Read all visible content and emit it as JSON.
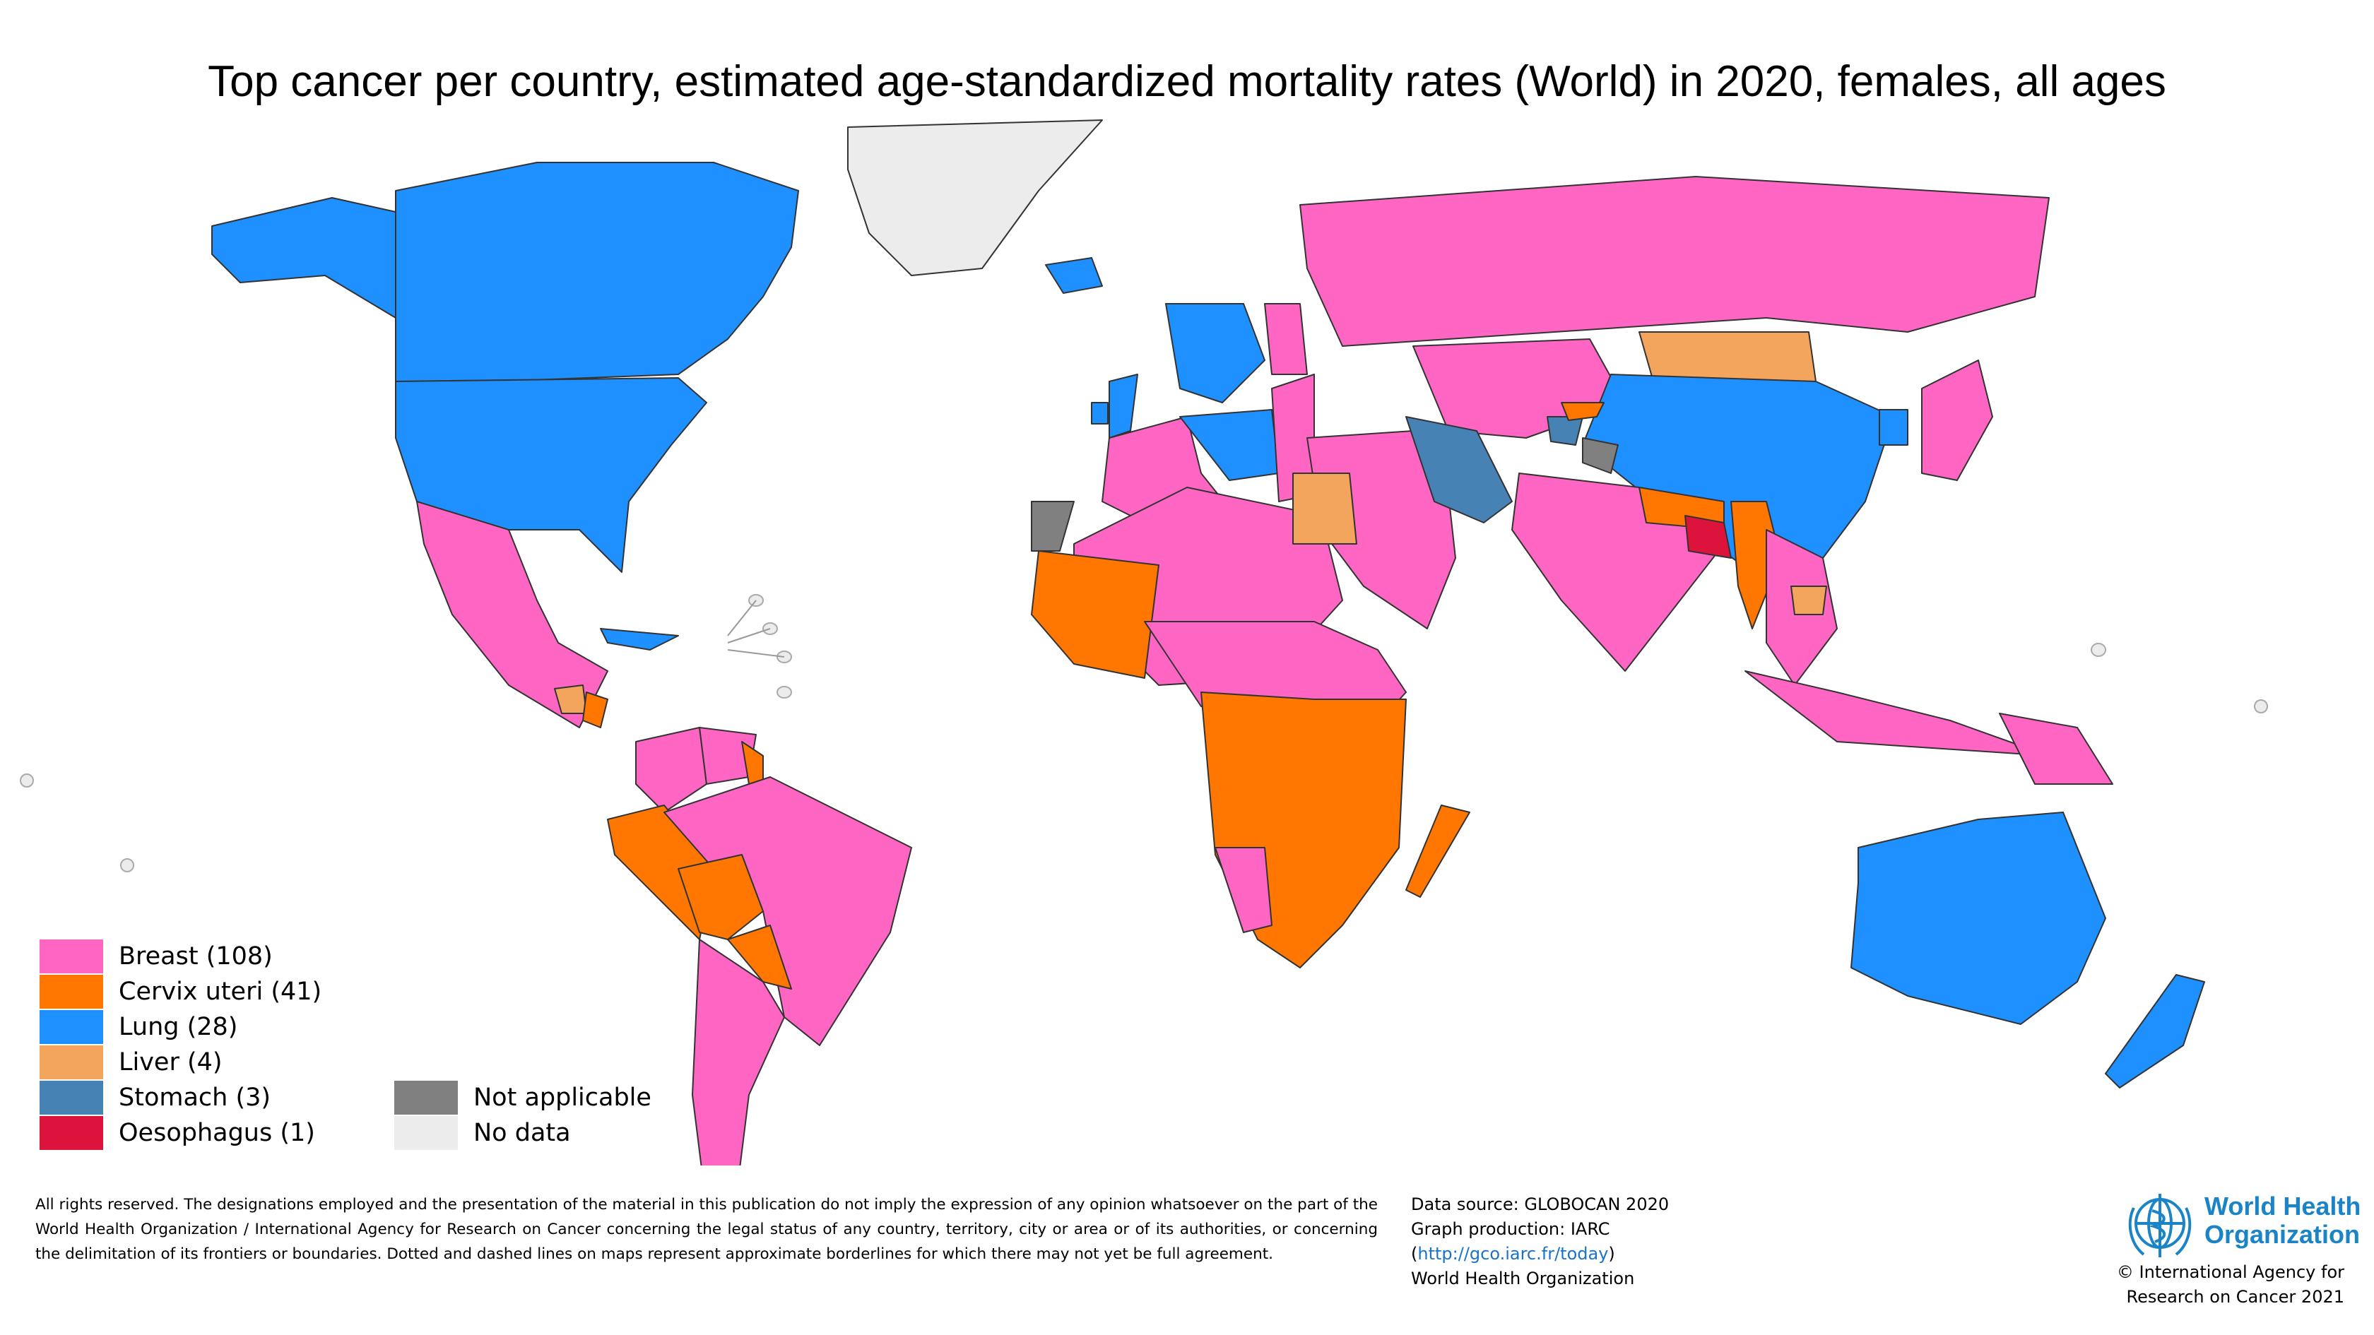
{
  "title": "Top cancer per country, estimated age-standardized mortality rates (World) in 2020, females, all ages",
  "legend": {
    "items": [
      {
        "label": "Breast (108)",
        "color": "#ff66c4"
      },
      {
        "label": "Cervix uteri (41)",
        "color": "#ff7700"
      },
      {
        "label": "Lung (28)",
        "color": "#1e90ff"
      },
      {
        "label": "Liver (4)",
        "color": "#f4a55d"
      },
      {
        "label": "Stomach (3)",
        "color": "#4682b4"
      },
      {
        "label": "Oesophagus (1)",
        "color": "#dc143c"
      },
      {
        "label": "Not applicable",
        "color": "#808080"
      },
      {
        "label": "No data",
        "color": "#ececec"
      }
    ]
  },
  "disclaimer": "All rights reserved. The designations employed and the presentation of the material in this publication do not imply the expression of any opinion whatsoever on the part of the World Health Organization / International Agency for Research on Cancer concerning the legal status of any country, territory, city or area or of its authorities, or concerning the delimitation of its frontiers or boundaries. Dotted and dashed lines on maps represent approximate borderlines for which there may not yet be full agreement.",
  "source": {
    "line1": "Data source: GLOBOCAN 2020",
    "line2": "Graph production: IARC",
    "url_open": "(",
    "url": "http://gco.iarc.fr/today",
    "url_close": ")",
    "line4": "World Health Organization"
  },
  "logo": {
    "line1": "World Health",
    "line2": "Organization"
  },
  "copyright": {
    "line1": "© International Agency for",
    "line2": "Research on Cancer 2021"
  },
  "regions": [
    {
      "name": "Greenland",
      "category": "No data"
    },
    {
      "name": "Canada",
      "category": "Lung"
    },
    {
      "name": "Alaska",
      "category": "Lung"
    },
    {
      "name": "United States",
      "category": "Lung"
    },
    {
      "name": "Mexico",
      "category": "Breast"
    },
    {
      "name": "Guatemala",
      "category": "Liver"
    },
    {
      "name": "Honduras",
      "category": "Cervix uteri"
    },
    {
      "name": "Cuba",
      "category": "Lung"
    },
    {
      "name": "Colombia",
      "category": "Breast"
    },
    {
      "name": "Venezuela",
      "category": "Breast"
    },
    {
      "name": "Guyana",
      "category": "Cervix uteri"
    },
    {
      "name": "Peru",
      "category": "Cervix uteri"
    },
    {
      "name": "Brazil",
      "category": "Breast"
    },
    {
      "name": "Bolivia",
      "category": "Cervix uteri"
    },
    {
      "name": "Paraguay",
      "category": "Cervix uteri"
    },
    {
      "name": "Argentina",
      "category": "Breast"
    },
    {
      "name": "Iceland",
      "category": "Lung"
    },
    {
      "name": "United Kingdom",
      "category": "Lung"
    },
    {
      "name": "Ireland",
      "category": "Lung"
    },
    {
      "name": "Scandinavia",
      "category": "Lung"
    },
    {
      "name": "Finland",
      "category": "Breast"
    },
    {
      "name": "Western Europe",
      "category": "Breast"
    },
    {
      "name": "Central Europe",
      "category": "Lung"
    },
    {
      "name": "Eastern Europe",
      "category": "Breast"
    },
    {
      "name": "Russia",
      "category": "Breast"
    },
    {
      "name": "Kazakhstan",
      "category": "Breast"
    },
    {
      "name": "Mongolia",
      "category": "Liver"
    },
    {
      "name": "China",
      "category": "Lung"
    },
    {
      "name": "Korea",
      "category": "Lung"
    },
    {
      "name": "Japan",
      "category": "Breast"
    },
    {
      "name": "Middle East",
      "category": "Breast"
    },
    {
      "name": "Iran",
      "category": "Stomach"
    },
    {
      "name": "Tajikistan",
      "category": "Stomach"
    },
    {
      "name": "Kyrgyzstan",
      "category": "Cervix uteri"
    },
    {
      "name": "Kashmir",
      "category": "Not applicable"
    },
    {
      "name": "India",
      "category": "Breast"
    },
    {
      "name": "Nepal",
      "category": "Cervix uteri"
    },
    {
      "name": "Bangladesh",
      "category": "Oesophagus"
    },
    {
      "name": "Myanmar",
      "category": "Cervix uteri"
    },
    {
      "name": "Southeast Asia",
      "category": "Breast"
    },
    {
      "name": "Cambodia",
      "category": "Liver"
    },
    {
      "name": "Indonesia",
      "category": "Breast"
    },
    {
      "name": "Papua New Guinea",
      "category": "Breast"
    },
    {
      "name": "Australia",
      "category": "Lung"
    },
    {
      "name": "New Zealand",
      "category": "Lung"
    },
    {
      "name": "North Africa",
      "category": "Breast"
    },
    {
      "name": "Western Sahara",
      "category": "Not applicable"
    },
    {
      "name": "Egypt",
      "category": "Liver"
    },
    {
      "name": "West Africa",
      "category": "Cervix uteri"
    },
    {
      "name": "Central Africa",
      "category": "Breast"
    },
    {
      "name": "East and Southern Africa",
      "category": "Cervix uteri"
    },
    {
      "name": "Namibia",
      "category": "Breast"
    },
    {
      "name": "Madagascar",
      "category": "Cervix uteri"
    }
  ]
}
